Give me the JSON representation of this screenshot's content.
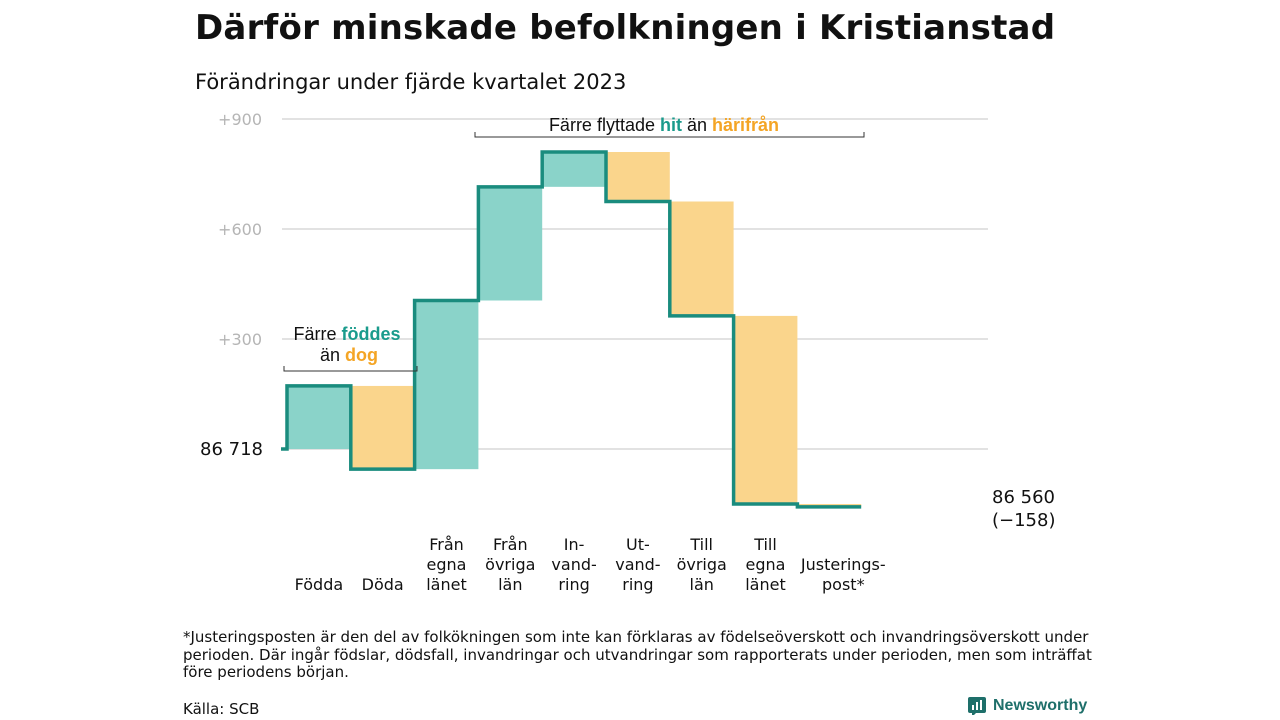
{
  "title": "Därför minskade befolkningen i Kristianstad",
  "subtitle": "Förändringar under fjärde kvartalet 2023",
  "colors": {
    "increase": "#8ad3c9",
    "decrease": "#fad58c",
    "line": "#1a8c7e",
    "hit_text": "#1a9b8c",
    "harifran_text": "#f4a525",
    "grid": "#d9d9d9"
  },
  "chart_data": {
    "type": "waterfall",
    "start_label": "86  718",
    "start_value": 86718,
    "end_label": "86 560",
    "end_change_label": "(−158)",
    "end_value": 86560,
    "yticks": [
      "+900",
      "+600",
      "+300"
    ],
    "ytick_values": [
      900,
      600,
      300
    ],
    "ylim": [
      -160,
      900
    ],
    "categories": [
      [
        "Födda"
      ],
      [
        "Döda"
      ],
      [
        "Från",
        "egna",
        "länet"
      ],
      [
        "Från",
        "övriga",
        "län"
      ],
      [
        "In-",
        "vand-",
        "ring"
      ],
      [
        "Ut-",
        "vand-",
        "ring"
      ],
      [
        "Till",
        "övriga",
        "län"
      ],
      [
        "Till",
        "egna",
        "länet"
      ],
      [
        "Justerings-",
        "post*"
      ]
    ],
    "bars": [
      {
        "start": 0,
        "end": 172,
        "kind": "increase"
      },
      {
        "start": 172,
        "end": -55,
        "kind": "decrease"
      },
      {
        "start": -55,
        "end": 405,
        "kind": "increase"
      },
      {
        "start": 405,
        "end": 715,
        "kind": "increase"
      },
      {
        "start": 715,
        "end": 810,
        "kind": "increase"
      },
      {
        "start": 810,
        "end": 675,
        "kind": "decrease"
      },
      {
        "start": 675,
        "end": 363,
        "kind": "decrease"
      },
      {
        "start": 363,
        "end": -150,
        "kind": "decrease"
      },
      {
        "start": -150,
        "end": -158,
        "kind": "decrease"
      }
    ],
    "annotations": [
      {
        "parts": [
          "Färre ",
          "föddes"
        ],
        "line2": [
          "än ",
          "dog"
        ]
      },
      {
        "parts": [
          "Färre flyttade ",
          "hit",
          " än ",
          "härifrån"
        ]
      }
    ],
    "grid": true
  },
  "footnote": "*Justeringsposten är den del av folkökningen som inte kan förklaras av födelseöverskott och invandringsöverskott under perioden. Där ingår födslar, dödsfall, invandringar och utvandringar som rapporterats under perioden, men som inträffat före periodens början.",
  "source": "Källa: SCB",
  "brand": "Newsworthy"
}
